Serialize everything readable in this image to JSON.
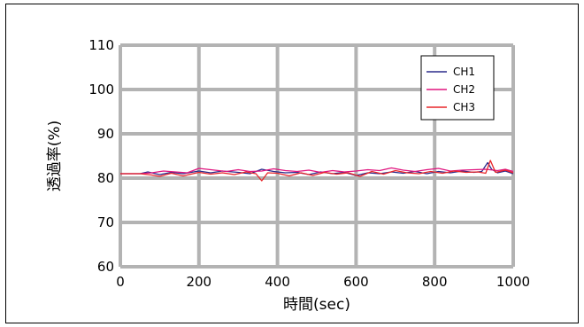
{
  "chart_data": {
    "type": "line",
    "title": "",
    "xlabel": "時間(sec)",
    "ylabel": "透過率(%)",
    "xlim": [
      0,
      1000
    ],
    "ylim": [
      60,
      110
    ],
    "x_ticks": [
      0,
      200,
      400,
      600,
      800,
      1000
    ],
    "y_ticks": [
      60,
      70,
      80,
      90,
      100,
      110
    ],
    "grid": true,
    "legend_position": "top-right",
    "series": [
      {
        "name": "CH1",
        "color": "#2b2b8c",
        "x": [
          0,
          50,
          70,
          100,
          130,
          160,
          200,
          230,
          260,
          300,
          330,
          360,
          390,
          420,
          450,
          480,
          510,
          540,
          570,
          600,
          630,
          660,
          690,
          720,
          750,
          780,
          810,
          840,
          870,
          900,
          920,
          935,
          945,
          960,
          980,
          1000
        ],
        "y": [
          81,
          81,
          81.4,
          80.8,
          81.3,
          81,
          81.6,
          81.2,
          81.6,
          81.3,
          81,
          82,
          81.5,
          81.2,
          81.3,
          80.8,
          81.4,
          81,
          81.3,
          80.6,
          81.2,
          81,
          81.4,
          81.1,
          81.5,
          81,
          81.5,
          81.2,
          81.6,
          81.3,
          81.5,
          83.5,
          82,
          81.2,
          81.6,
          81
        ]
      },
      {
        "name": "CH2",
        "color": "#e0157f",
        "x": [
          0,
          50,
          80,
          110,
          140,
          170,
          200,
          240,
          270,
          300,
          330,
          360,
          390,
          420,
          450,
          480,
          510,
          540,
          570,
          600,
          630,
          660,
          690,
          720,
          750,
          780,
          810,
          840,
          870,
          900,
          930,
          960,
          980,
          1000
        ],
        "y": [
          81,
          81,
          81.2,
          81.6,
          81.4,
          81.2,
          82.2,
          81.8,
          81.5,
          81.9,
          81.5,
          81.6,
          82.1,
          81.7,
          81.5,
          81.8,
          81.3,
          81.7,
          81.4,
          81.6,
          81.9,
          81.7,
          82.3,
          81.8,
          81.5,
          81.9,
          82.2,
          81.6,
          81.8,
          81.9,
          82,
          81.7,
          82,
          81.5
        ]
      },
      {
        "name": "CH3",
        "color": "#e8262a",
        "x": [
          0,
          50,
          80,
          100,
          130,
          160,
          200,
          230,
          260,
          290,
          320,
          345,
          360,
          375,
          400,
          430,
          460,
          490,
          520,
          550,
          580,
          610,
          640,
          670,
          700,
          730,
          760,
          790,
          820,
          850,
          880,
          910,
          930,
          942,
          955,
          980,
          1000
        ],
        "y": [
          81,
          81,
          80.7,
          80.4,
          81.1,
          80.5,
          81.3,
          80.9,
          81.2,
          80.8,
          81.4,
          81,
          79.4,
          81.2,
          81.1,
          80.5,
          81.2,
          80.6,
          81.3,
          80.9,
          81.2,
          80.4,
          81.5,
          80.9,
          81.7,
          81.2,
          81,
          81.5,
          81.1,
          81.6,
          81.3,
          81.4,
          81.1,
          84,
          81.3,
          81.8,
          81.2
        ]
      }
    ]
  }
}
